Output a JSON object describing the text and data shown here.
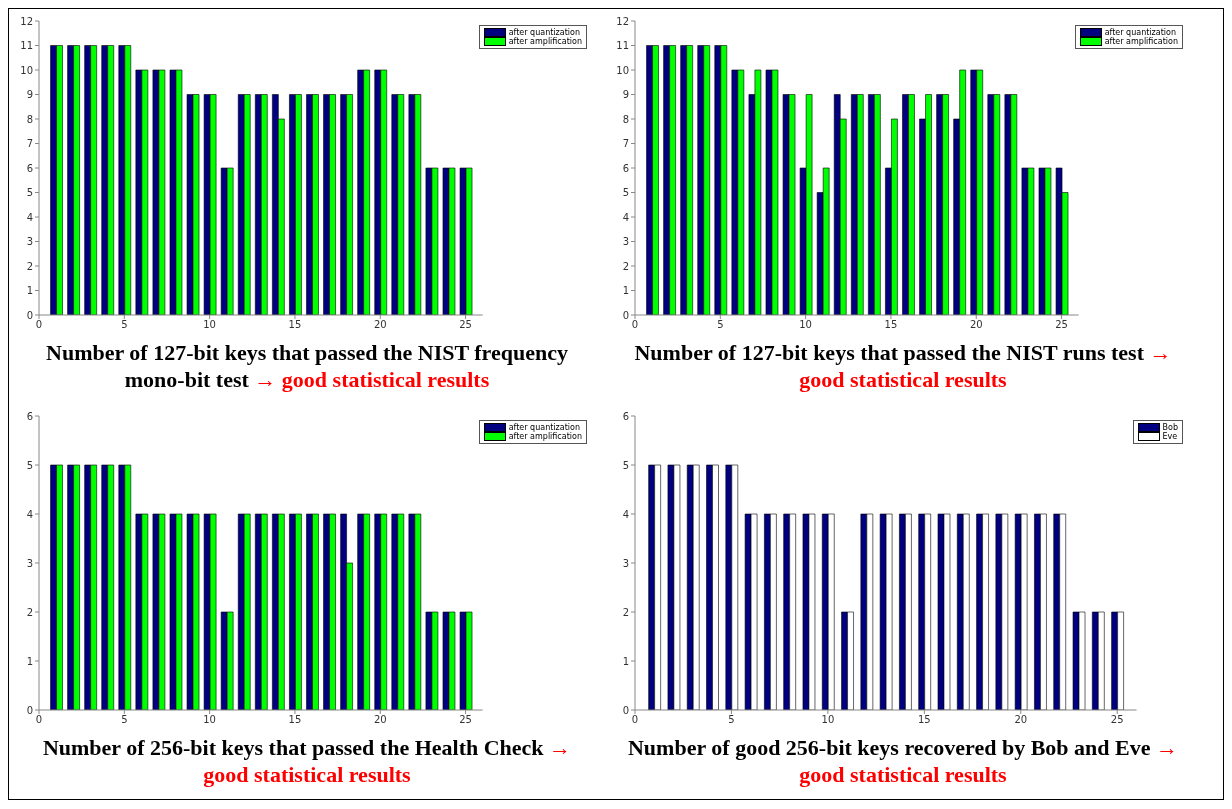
{
  "chart_data": [
    {
      "type": "bar",
      "title": "Number of 127-bit keys that passed the NIST frequency mono-bit test",
      "subtitle": "→ good statistical results",
      "x": [
        1,
        2,
        3,
        4,
        5,
        6,
        7,
        8,
        9,
        10,
        11,
        12,
        13,
        14,
        15,
        16,
        17,
        18,
        19,
        20,
        21,
        22,
        23,
        24,
        25
      ],
      "xlim": [
        0,
        26
      ],
      "xticks": [
        0,
        5,
        10,
        15,
        20,
        25
      ],
      "ylim": [
        0,
        12
      ],
      "yticks": [
        0,
        1,
        2,
        3,
        4,
        5,
        6,
        7,
        8,
        9,
        10,
        11,
        12
      ],
      "legend": "top right",
      "series": [
        {
          "name": "after quantization",
          "color": "#000080",
          "values": [
            11,
            11,
            11,
            11,
            11,
            10,
            10,
            10,
            9,
            9,
            6,
            9,
            9,
            9,
            9,
            9,
            9,
            9,
            10,
            10,
            9,
            9,
            6,
            6,
            6
          ]
        },
        {
          "name": "after amplification",
          "color": "#00ff00",
          "values": [
            11,
            11,
            11,
            11,
            11,
            10,
            10,
            10,
            9,
            9,
            6,
            9,
            9,
            8,
            9,
            9,
            9,
            9,
            10,
            10,
            9,
            9,
            6,
            6,
            6
          ]
        }
      ]
    },
    {
      "type": "bar",
      "title": "Number of 127-bit keys that passed the NIST runs test",
      "subtitle": "→ good statistical results",
      "x": [
        1,
        2,
        3,
        4,
        5,
        6,
        7,
        8,
        9,
        10,
        11,
        12,
        13,
        14,
        15,
        16,
        17,
        18,
        19,
        20,
        21,
        22,
        23,
        24,
        25
      ],
      "xlim": [
        0,
        26
      ],
      "xticks": [
        0,
        5,
        10,
        15,
        20,
        25
      ],
      "ylim": [
        0,
        12
      ],
      "yticks": [
        0,
        1,
        2,
        3,
        4,
        5,
        6,
        7,
        8,
        9,
        10,
        11,
        12
      ],
      "legend": "top right",
      "series": [
        {
          "name": "after quantization",
          "color": "#000080",
          "values": [
            11,
            11,
            11,
            11,
            11,
            10,
            9,
            10,
            9,
            6,
            5,
            9,
            9,
            9,
            6,
            9,
            8,
            9,
            8,
            10,
            9,
            9,
            6,
            6,
            6
          ]
        },
        {
          "name": "after amplification",
          "color": "#00ff00",
          "values": [
            11,
            11,
            11,
            11,
            11,
            10,
            10,
            10,
            9,
            9,
            6,
            8,
            9,
            9,
            8,
            9,
            9,
            9,
            10,
            10,
            9,
            9,
            6,
            6,
            5
          ]
        }
      ]
    },
    {
      "type": "bar",
      "title": "Number of 256-bit keys that passed the Health Check",
      "subtitle": "→ good statistical results",
      "x": [
        1,
        2,
        3,
        4,
        5,
        6,
        7,
        8,
        9,
        10,
        11,
        12,
        13,
        14,
        15,
        16,
        17,
        18,
        19,
        20,
        21,
        22,
        23,
        24,
        25
      ],
      "xlim": [
        0,
        26
      ],
      "xticks": [
        0,
        5,
        10,
        15,
        20,
        25
      ],
      "ylim": [
        0,
        6
      ],
      "yticks": [
        0,
        1,
        2,
        3,
        4,
        5,
        6
      ],
      "legend": "top right",
      "series": [
        {
          "name": "after quantization",
          "color": "#000080",
          "values": [
            5,
            5,
            5,
            5,
            5,
            4,
            4,
            4,
            4,
            4,
            2,
            4,
            4,
            4,
            4,
            4,
            4,
            4,
            4,
            4,
            4,
            4,
            2,
            2,
            2
          ]
        },
        {
          "name": "after amplification",
          "color": "#00ff00",
          "values": [
            5,
            5,
            5,
            5,
            5,
            4,
            4,
            4,
            4,
            4,
            2,
            4,
            4,
            4,
            4,
            4,
            4,
            3,
            4,
            4,
            4,
            4,
            2,
            2,
            2
          ]
        }
      ]
    },
    {
      "type": "bar",
      "title": "Number of good 256-bit keys recovered by Bob and Eve",
      "subtitle": "→ good statistical results",
      "x": [
        1,
        2,
        3,
        4,
        5,
        6,
        7,
        8,
        9,
        10,
        11,
        12,
        13,
        14,
        15,
        16,
        17,
        18,
        19,
        20,
        21,
        22,
        23,
        24,
        25
      ],
      "xlim": [
        0,
        26
      ],
      "xticks": [
        0,
        5,
        10,
        15,
        20,
        25
      ],
      "ylim": [
        0,
        6
      ],
      "yticks": [
        0,
        1,
        2,
        3,
        4,
        5,
        6
      ],
      "legend": "top right",
      "series": [
        {
          "name": "Bob",
          "color": "#000080",
          "values": [
            5,
            5,
            5,
            5,
            5,
            4,
            4,
            4,
            4,
            4,
            2,
            4,
            4,
            4,
            4,
            4,
            4,
            4,
            4,
            4,
            4,
            4,
            2,
            2,
            2
          ]
        },
        {
          "name": "Eve",
          "color": "#ffffff",
          "values": [
            5,
            5,
            5,
            5,
            5,
            4,
            4,
            4,
            4,
            4,
            2,
            4,
            4,
            4,
            4,
            4,
            4,
            4,
            4,
            4,
            4,
            4,
            2,
            2,
            2
          ]
        }
      ]
    }
  ]
}
